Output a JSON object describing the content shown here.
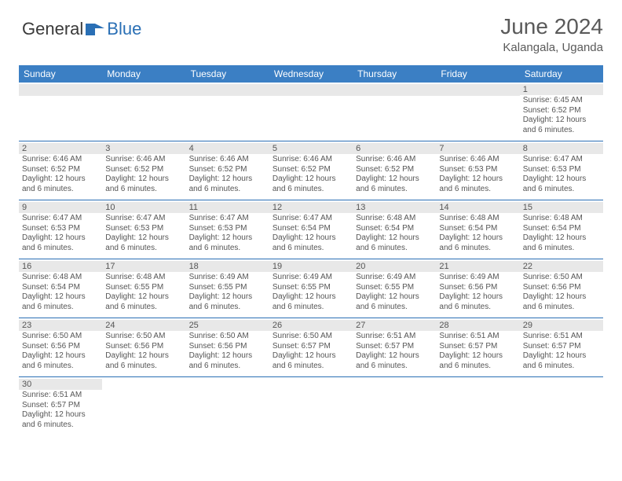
{
  "logo": {
    "text_dark": "General",
    "text_blue": "Blue",
    "icon_color": "#2a6fb5"
  },
  "title": {
    "month": "June 2024",
    "location": "Kalangala, Uganda"
  },
  "colors": {
    "header_bg": "#3b7fc4",
    "header_text": "#ffffff",
    "date_bar_bg": "#e8e8e8",
    "text": "#555555",
    "divider": "#2a6fb5"
  },
  "weekdays": [
    "Sunday",
    "Monday",
    "Tuesday",
    "Wednesday",
    "Thursday",
    "Friday",
    "Saturday"
  ],
  "weeks": [
    [
      {
        "empty": true
      },
      {
        "empty": true
      },
      {
        "empty": true
      },
      {
        "empty": true
      },
      {
        "empty": true
      },
      {
        "empty": true
      },
      {
        "day": "1",
        "sunrise": "Sunrise: 6:45 AM",
        "sunset": "Sunset: 6:52 PM",
        "daylight": "Daylight: 12 hours and 6 minutes."
      }
    ],
    [
      {
        "day": "2",
        "sunrise": "Sunrise: 6:46 AM",
        "sunset": "Sunset: 6:52 PM",
        "daylight": "Daylight: 12 hours and 6 minutes."
      },
      {
        "day": "3",
        "sunrise": "Sunrise: 6:46 AM",
        "sunset": "Sunset: 6:52 PM",
        "daylight": "Daylight: 12 hours and 6 minutes."
      },
      {
        "day": "4",
        "sunrise": "Sunrise: 6:46 AM",
        "sunset": "Sunset: 6:52 PM",
        "daylight": "Daylight: 12 hours and 6 minutes."
      },
      {
        "day": "5",
        "sunrise": "Sunrise: 6:46 AM",
        "sunset": "Sunset: 6:52 PM",
        "daylight": "Daylight: 12 hours and 6 minutes."
      },
      {
        "day": "6",
        "sunrise": "Sunrise: 6:46 AM",
        "sunset": "Sunset: 6:52 PM",
        "daylight": "Daylight: 12 hours and 6 minutes."
      },
      {
        "day": "7",
        "sunrise": "Sunrise: 6:46 AM",
        "sunset": "Sunset: 6:53 PM",
        "daylight": "Daylight: 12 hours and 6 minutes."
      },
      {
        "day": "8",
        "sunrise": "Sunrise: 6:47 AM",
        "sunset": "Sunset: 6:53 PM",
        "daylight": "Daylight: 12 hours and 6 minutes."
      }
    ],
    [
      {
        "day": "9",
        "sunrise": "Sunrise: 6:47 AM",
        "sunset": "Sunset: 6:53 PM",
        "daylight": "Daylight: 12 hours and 6 minutes."
      },
      {
        "day": "10",
        "sunrise": "Sunrise: 6:47 AM",
        "sunset": "Sunset: 6:53 PM",
        "daylight": "Daylight: 12 hours and 6 minutes."
      },
      {
        "day": "11",
        "sunrise": "Sunrise: 6:47 AM",
        "sunset": "Sunset: 6:53 PM",
        "daylight": "Daylight: 12 hours and 6 minutes."
      },
      {
        "day": "12",
        "sunrise": "Sunrise: 6:47 AM",
        "sunset": "Sunset: 6:54 PM",
        "daylight": "Daylight: 12 hours and 6 minutes."
      },
      {
        "day": "13",
        "sunrise": "Sunrise: 6:48 AM",
        "sunset": "Sunset: 6:54 PM",
        "daylight": "Daylight: 12 hours and 6 minutes."
      },
      {
        "day": "14",
        "sunrise": "Sunrise: 6:48 AM",
        "sunset": "Sunset: 6:54 PM",
        "daylight": "Daylight: 12 hours and 6 minutes."
      },
      {
        "day": "15",
        "sunrise": "Sunrise: 6:48 AM",
        "sunset": "Sunset: 6:54 PM",
        "daylight": "Daylight: 12 hours and 6 minutes."
      }
    ],
    [
      {
        "day": "16",
        "sunrise": "Sunrise: 6:48 AM",
        "sunset": "Sunset: 6:54 PM",
        "daylight": "Daylight: 12 hours and 6 minutes."
      },
      {
        "day": "17",
        "sunrise": "Sunrise: 6:48 AM",
        "sunset": "Sunset: 6:55 PM",
        "daylight": "Daylight: 12 hours and 6 minutes."
      },
      {
        "day": "18",
        "sunrise": "Sunrise: 6:49 AM",
        "sunset": "Sunset: 6:55 PM",
        "daylight": "Daylight: 12 hours and 6 minutes."
      },
      {
        "day": "19",
        "sunrise": "Sunrise: 6:49 AM",
        "sunset": "Sunset: 6:55 PM",
        "daylight": "Daylight: 12 hours and 6 minutes."
      },
      {
        "day": "20",
        "sunrise": "Sunrise: 6:49 AM",
        "sunset": "Sunset: 6:55 PM",
        "daylight": "Daylight: 12 hours and 6 minutes."
      },
      {
        "day": "21",
        "sunrise": "Sunrise: 6:49 AM",
        "sunset": "Sunset: 6:56 PM",
        "daylight": "Daylight: 12 hours and 6 minutes."
      },
      {
        "day": "22",
        "sunrise": "Sunrise: 6:50 AM",
        "sunset": "Sunset: 6:56 PM",
        "daylight": "Daylight: 12 hours and 6 minutes."
      }
    ],
    [
      {
        "day": "23",
        "sunrise": "Sunrise: 6:50 AM",
        "sunset": "Sunset: 6:56 PM",
        "daylight": "Daylight: 12 hours and 6 minutes."
      },
      {
        "day": "24",
        "sunrise": "Sunrise: 6:50 AM",
        "sunset": "Sunset: 6:56 PM",
        "daylight": "Daylight: 12 hours and 6 minutes."
      },
      {
        "day": "25",
        "sunrise": "Sunrise: 6:50 AM",
        "sunset": "Sunset: 6:56 PM",
        "daylight": "Daylight: 12 hours and 6 minutes."
      },
      {
        "day": "26",
        "sunrise": "Sunrise: 6:50 AM",
        "sunset": "Sunset: 6:57 PM",
        "daylight": "Daylight: 12 hours and 6 minutes."
      },
      {
        "day": "27",
        "sunrise": "Sunrise: 6:51 AM",
        "sunset": "Sunset: 6:57 PM",
        "daylight": "Daylight: 12 hours and 6 minutes."
      },
      {
        "day": "28",
        "sunrise": "Sunrise: 6:51 AM",
        "sunset": "Sunset: 6:57 PM",
        "daylight": "Daylight: 12 hours and 6 minutes."
      },
      {
        "day": "29",
        "sunrise": "Sunrise: 6:51 AM",
        "sunset": "Sunset: 6:57 PM",
        "daylight": "Daylight: 12 hours and 6 minutes."
      }
    ],
    [
      {
        "day": "30",
        "sunrise": "Sunrise: 6:51 AM",
        "sunset": "Sunset: 6:57 PM",
        "daylight": "Daylight: 12 hours and 6 minutes."
      },
      {
        "blank": true
      },
      {
        "blank": true
      },
      {
        "blank": true
      },
      {
        "blank": true
      },
      {
        "blank": true
      },
      {
        "blank": true
      }
    ]
  ]
}
